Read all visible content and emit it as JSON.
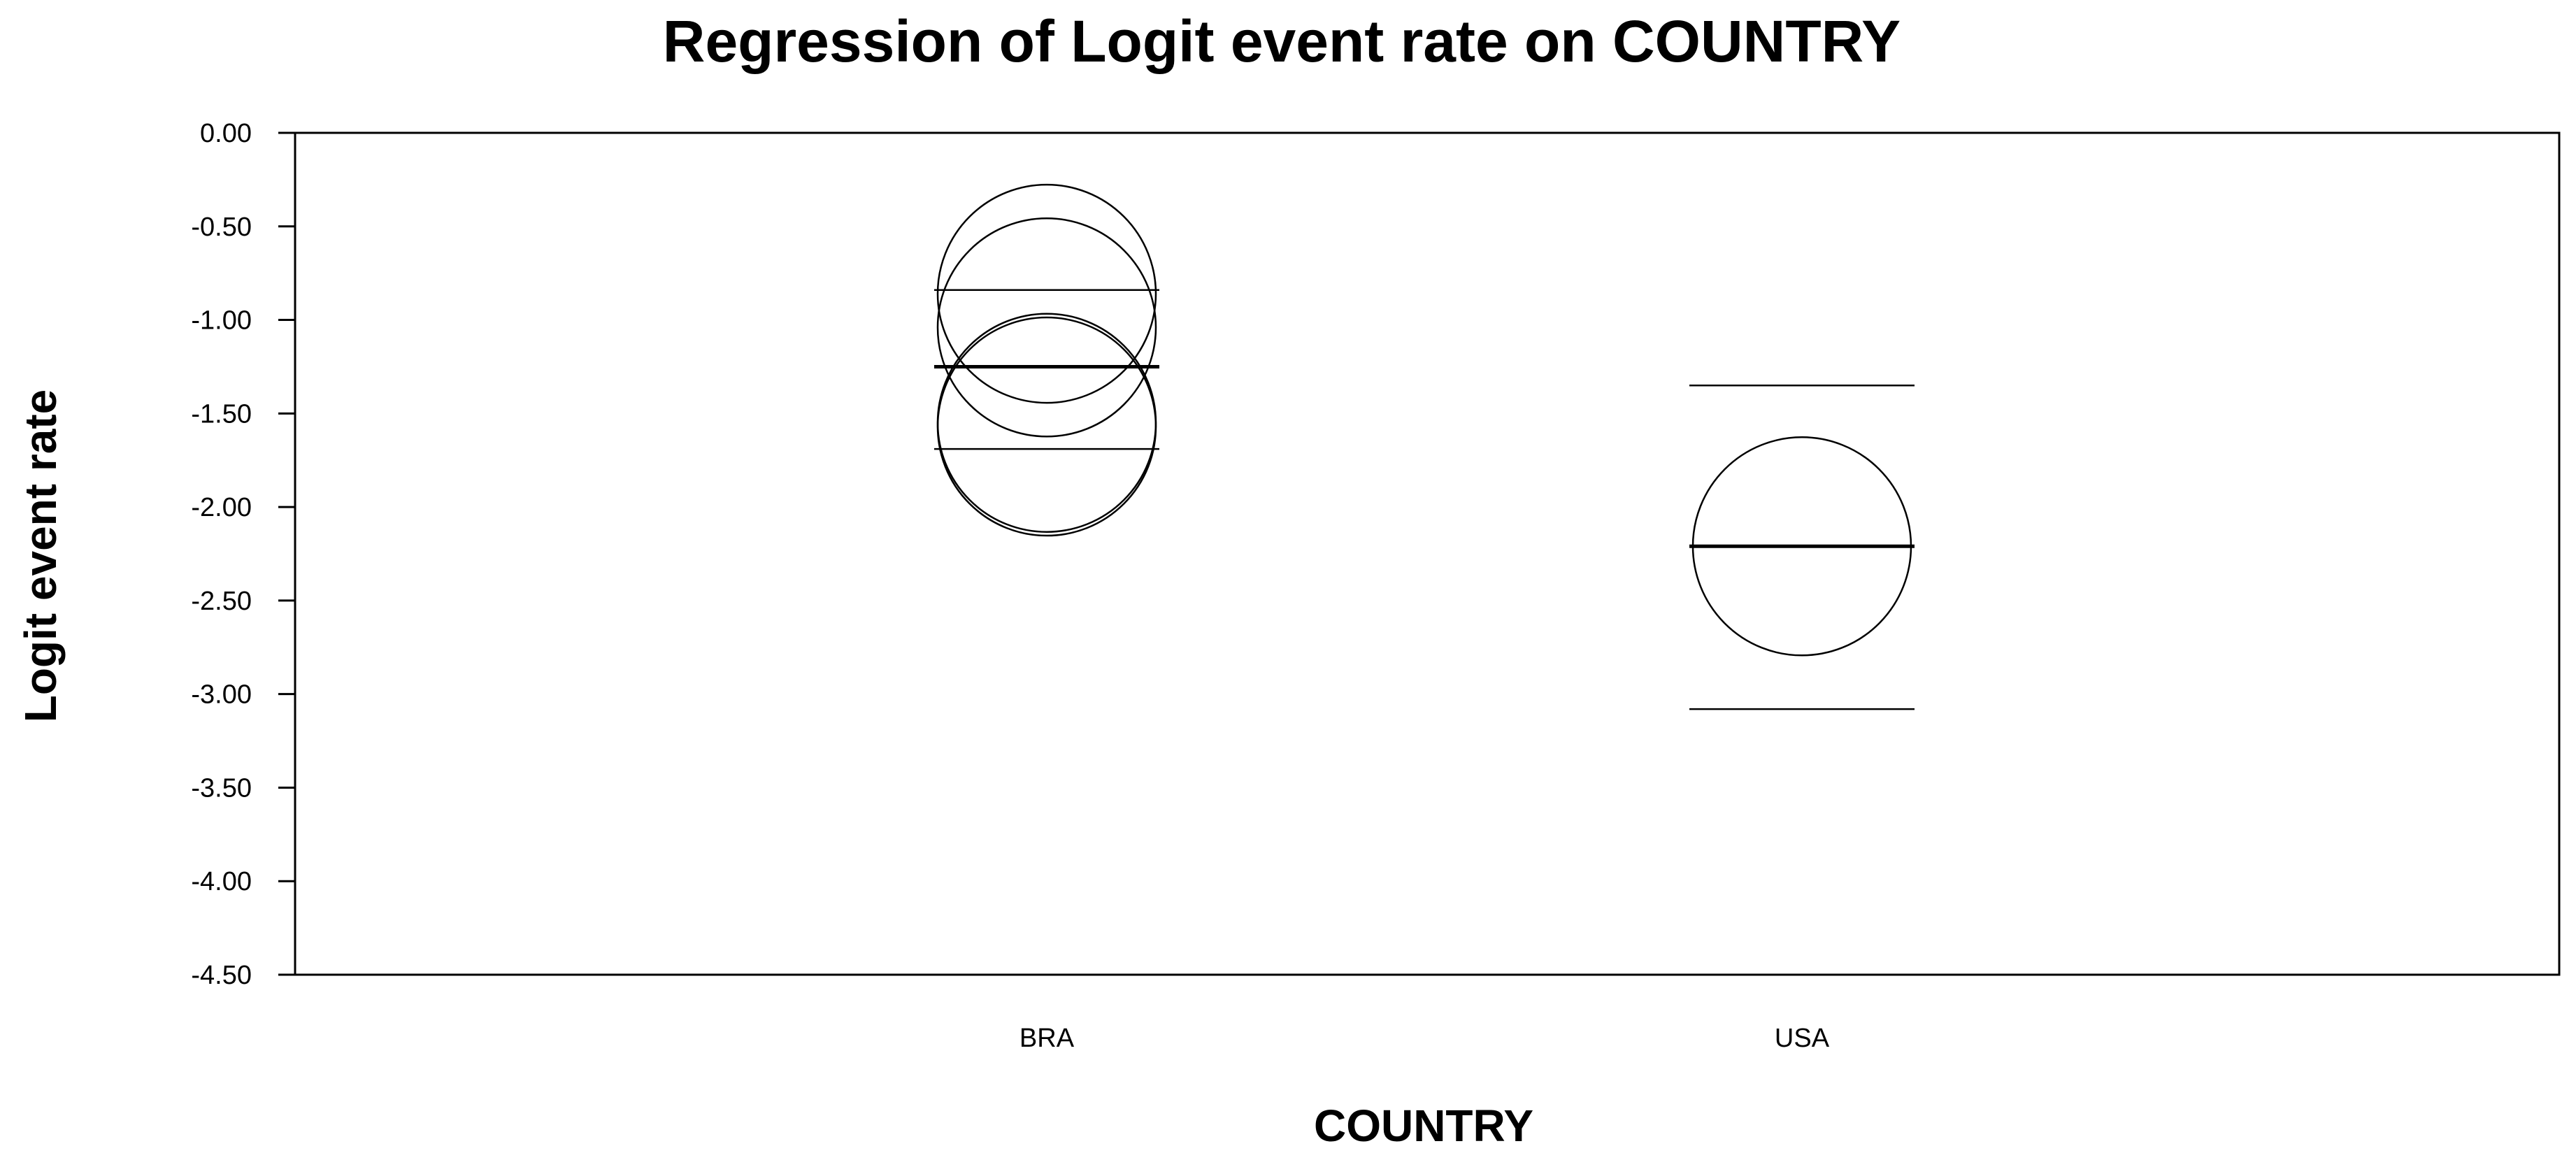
{
  "chart_data": {
    "type": "scatter",
    "title": "Regression of Logit event rate on COUNTRY",
    "xlabel": "COUNTRY",
    "ylabel": "Logit event rate",
    "categories": [
      "BRA",
      "USA"
    ],
    "ylim": [
      -4.5,
      0.0
    ],
    "yticks": [
      "0.00",
      "-0.50",
      "-1.00",
      "-1.50",
      "-2.00",
      "-2.50",
      "-3.00",
      "-3.50",
      "-4.00",
      "-4.50"
    ],
    "ytick_values": [
      0.0,
      -0.5,
      -1.0,
      -1.5,
      -2.0,
      -2.5,
      -3.0,
      -3.5,
      -4.0,
      -4.5
    ],
    "grid": false,
    "studies": [
      {
        "category": "BRA",
        "y": -0.86,
        "weight": 1.0
      },
      {
        "category": "BRA",
        "y": -1.04,
        "weight": 1.0
      },
      {
        "category": "BRA",
        "y": -1.55,
        "weight": 1.0
      },
      {
        "category": "BRA",
        "y": -1.57,
        "weight": 1.0
      },
      {
        "category": "USA",
        "y": -2.21,
        "weight": 1.0
      }
    ],
    "regression": [
      {
        "category": "BRA",
        "estimate": -1.25,
        "lower": -1.69,
        "upper": -0.84
      },
      {
        "category": "USA",
        "estimate": -2.21,
        "lower": -3.08,
        "upper": -1.35
      }
    ]
  }
}
